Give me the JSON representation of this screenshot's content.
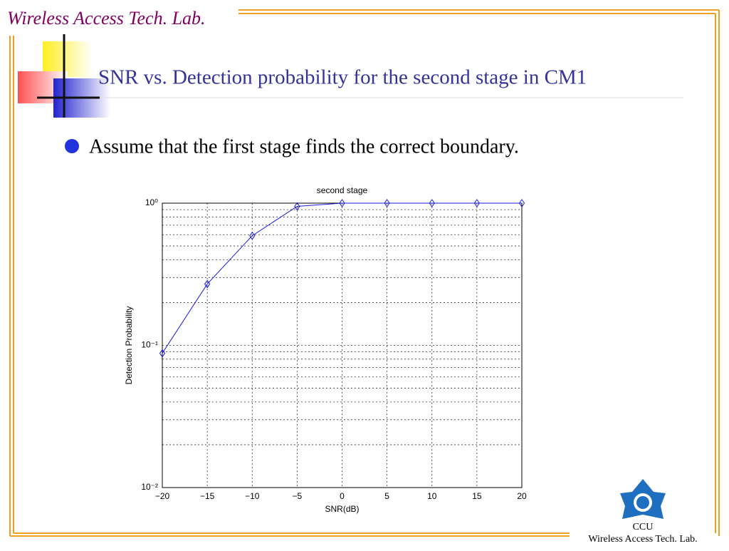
{
  "header": {
    "lab": "Wireless Access Tech. Lab.",
    "title": "SNR vs. Detection probability for the second stage in CM1"
  },
  "bullet": "Assume that the first stage finds the correct boundary.",
  "footer": {
    "university": "CCU",
    "lab": "Wireless Access Tech. Lab."
  },
  "chart_data": {
    "type": "line",
    "title": "second stage",
    "x_label": "SNR(dB)",
    "y_label": "Detection Probability",
    "x": [
      -20,
      -15,
      -10,
      -5,
      0,
      5,
      10,
      15,
      20
    ],
    "series": [
      {
        "name": "second stage",
        "color": "#1a1adb",
        "values": [
          0.088,
          0.27,
          0.59,
          0.95,
          1,
          1,
          1,
          1,
          1
        ]
      }
    ],
    "xlim": [
      -20,
      20
    ],
    "xticks": [
      {
        "value": -20,
        "label": "−20"
      },
      {
        "value": -15,
        "label": "−15"
      },
      {
        "value": -10,
        "label": "−10"
      },
      {
        "value": -5,
        "label": "−5"
      },
      0,
      5,
      10,
      15,
      20
    ],
    "ylim": [
      0.01,
      1
    ],
    "yticks": [
      {
        "value": 0.01,
        "label": "10⁻²"
      },
      {
        "value": 0.1,
        "label": "10⁻¹"
      },
      {
        "value": 1,
        "label": "10⁰"
      }
    ],
    "log_y": true,
    "grid": true,
    "minor_grid": true,
    "marker": "diamond"
  }
}
